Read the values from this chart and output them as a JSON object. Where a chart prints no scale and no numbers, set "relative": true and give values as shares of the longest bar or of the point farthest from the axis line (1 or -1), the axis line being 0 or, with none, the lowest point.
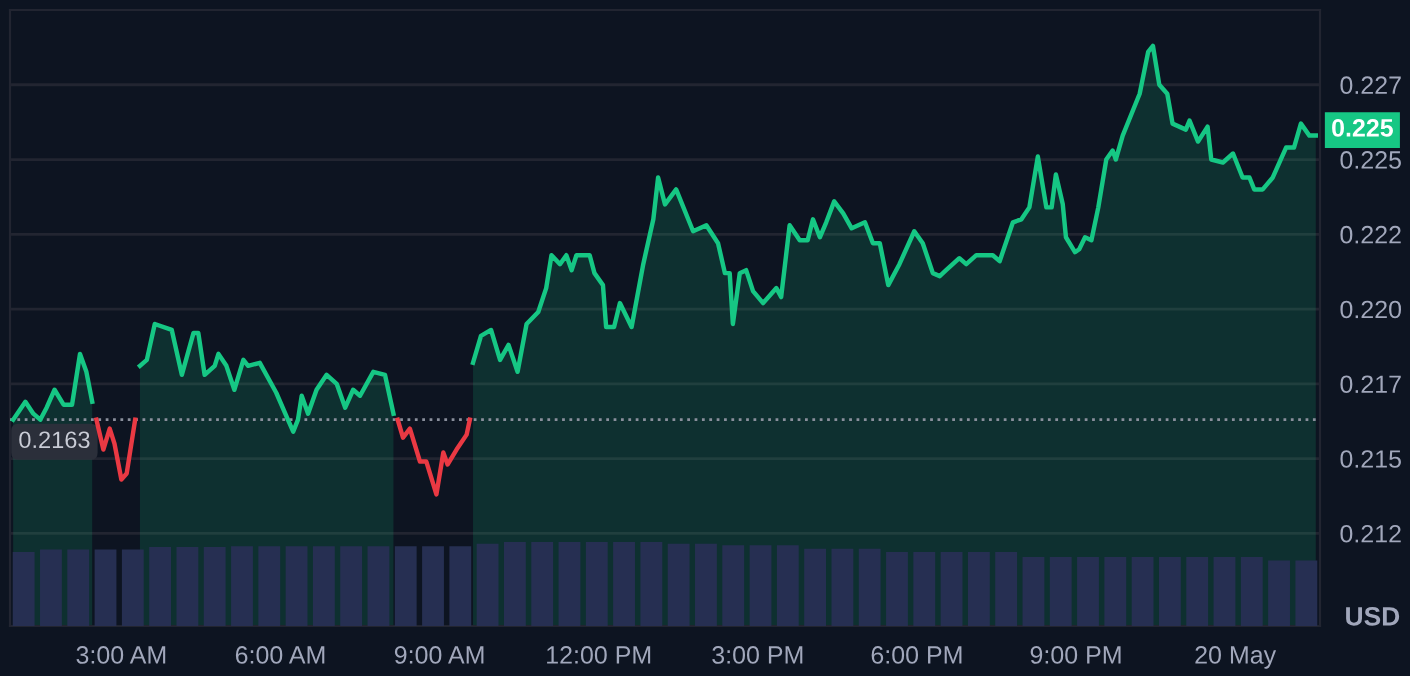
{
  "chart_data": [
    {
      "type": "area",
      "ylabel": "USD",
      "xlim": [
        0.9,
        25.6
      ],
      "xticks": [
        {
          "value": 3,
          "label": "3:00 AM"
        },
        {
          "value": 6,
          "label": "6:00 AM"
        },
        {
          "value": 9,
          "label": "9:00 AM"
        },
        {
          "value": 12,
          "label": "12:00 PM"
        },
        {
          "value": 15,
          "label": "3:00 PM"
        },
        {
          "value": 18,
          "label": "6:00 PM"
        },
        {
          "value": 21,
          "label": "9:00 PM"
        },
        {
          "value": 24,
          "label": "20 May"
        }
      ],
      "ylim": [
        0.2094,
        0.23
      ],
      "yticks": [
        {
          "value": 0.2125,
          "label": "0.212"
        },
        {
          "value": 0.215,
          "label": "0.215"
        },
        {
          "value": 0.2175,
          "label": "0.217"
        },
        {
          "value": 0.22,
          "label": "0.220"
        },
        {
          "value": 0.2225,
          "label": "0.222"
        },
        {
          "value": 0.225,
          "label": "0.225"
        },
        {
          "value": 0.2275,
          "label": "0.227"
        }
      ],
      "grid": "y",
      "ref_lines": [
        {
          "axis": "y",
          "value": 0.2163,
          "label": "0.2163",
          "color": "#8a8f9c",
          "line_style": "dotted"
        }
      ],
      "annotations": [
        "0.225"
      ],
      "series": [
        {
          "color": "#16c784",
          "x": [
            0.96,
            1.19,
            1.34,
            1.47,
            1.59,
            1.74,
            1.91,
            2.07,
            2.22,
            2.34,
            2.45,
            2.9,
            3.35,
            3.48,
            3.63,
            3.95,
            4.14,
            4.36,
            4.45,
            4.57,
            4.76,
            4.83,
            4.98,
            5.13,
            5.3,
            5.39,
            5.61,
            5.92,
            6.14,
            6.24,
            6.33,
            6.4,
            6.52,
            6.68,
            6.87,
            7.06,
            7.22,
            7.37,
            7.5,
            7.75,
            7.97,
            8.13,
            8.9,
            9.63,
            9.78,
            9.97,
            10.14,
            10.3,
            10.47,
            10.64,
            10.86,
            11.01,
            11.11,
            11.27,
            11.39,
            11.49,
            11.58,
            11.83,
            11.92,
            12.08,
            12.14,
            12.29,
            12.4,
            12.62,
            12.84,
            13.03,
            13.12,
            13.25,
            13.46,
            13.78,
            14.03,
            14.25,
            14.38,
            14.47,
            14.53,
            14.66,
            14.78,
            14.91,
            15.1,
            15.35,
            15.44,
            15.6,
            15.79,
            15.94,
            16.04,
            16.17,
            16.29,
            16.44,
            16.61,
            16.77,
            17.02,
            17.17,
            17.3,
            17.46,
            17.67,
            17.95,
            18.11,
            18.3,
            18.43,
            18.55,
            18.8,
            18.93,
            19.12,
            19.43,
            19.56,
            19.81,
            19.97,
            20.12,
            20.28,
            20.44,
            20.54,
            20.62,
            20.75,
            20.81,
            20.98,
            21.06,
            21.17,
            21.29,
            21.42,
            21.57,
            21.69,
            21.75,
            21.88,
            22.2,
            22.36,
            22.45,
            22.57,
            22.72,
            22.82,
            23.07,
            23.14,
            23.3,
            23.48,
            23.55,
            23.77,
            23.96,
            24.14,
            24.27,
            24.36,
            24.52,
            24.71,
            24.96,
            25.11,
            25.24,
            25.4,
            25.52
          ],
          "values": [
            0.2163,
            0.2169,
            0.2165,
            0.2163,
            0.2167,
            0.2173,
            0.2168,
            0.2168,
            0.2185,
            0.2179,
            0.2169,
            null,
            0.2181,
            0.2183,
            0.2195,
            0.2193,
            0.2178,
            0.2192,
            0.2192,
            0.2178,
            0.2181,
            0.2185,
            0.2181,
            0.2173,
            0.2183,
            0.2181,
            0.2182,
            0.2172,
            0.2163,
            0.2159,
            0.2163,
            0.2171,
            0.2165,
            0.2173,
            0.2178,
            0.2175,
            0.2167,
            0.2173,
            0.2171,
            0.2179,
            0.2178,
            0.2165,
            null,
            0.2182,
            0.2191,
            0.2193,
            0.2183,
            0.2188,
            0.2179,
            0.2195,
            0.2199,
            0.2207,
            0.2218,
            0.2215,
            0.2218,
            0.2213,
            0.2218,
            0.2218,
            0.2212,
            0.2208,
            0.2194,
            0.2194,
            0.2202,
            0.2194,
            0.2215,
            0.223,
            0.2244,
            0.2235,
            0.224,
            0.2226,
            0.2228,
            0.2222,
            0.2212,
            0.2212,
            0.2195,
            0.2212,
            0.2213,
            0.2206,
            0.2202,
            0.2207,
            0.2204,
            0.2228,
            0.2223,
            0.2223,
            0.223,
            0.2224,
            0.2229,
            0.2236,
            0.2232,
            0.2227,
            0.2229,
            0.2222,
            0.2222,
            0.2208,
            0.2215,
            0.2226,
            0.2222,
            0.2212,
            0.2211,
            0.2213,
            0.2217,
            0.2215,
            0.2218,
            0.2218,
            0.2216,
            0.2229,
            0.223,
            0.2234,
            0.2251,
            0.2234,
            0.2234,
            0.2245,
            0.2235,
            0.2224,
            0.2219,
            0.222,
            0.2224,
            0.2223,
            0.2234,
            0.225,
            0.2253,
            0.225,
            0.2258,
            0.2272,
            0.2286,
            0.2288,
            0.2275,
            0.2272,
            0.2262,
            0.226,
            0.2263,
            0.2256,
            0.2261,
            0.225,
            0.2249,
            0.2252,
            0.2244,
            0.2244,
            0.224,
            0.224,
            0.2244,
            0.2254,
            0.2254,
            0.2262,
            0.2258,
            0.2258
          ]
        },
        {
          "color": "#ea3943",
          "type": "line",
          "x": [
            2.53,
            2.66,
            2.78,
            2.87,
            3.0,
            3.1,
            3.26,
            5.0,
            8.21,
            8.31,
            8.44,
            8.63,
            8.75,
            8.94,
            9.07,
            9.15,
            9.32,
            9.51,
            9.57
          ],
          "values": [
            0.2163,
            0.2153,
            0.216,
            0.2155,
            0.2143,
            0.2145,
            0.2163,
            null,
            0.2163,
            0.2157,
            0.216,
            0.2149,
            0.2149,
            0.2138,
            0.2152,
            0.2148,
            0.2153,
            0.2158,
            0.2163
          ]
        }
      ]
    },
    {
      "type": "bar",
      "relative": true,
      "color": "#262f52",
      "categories": [
        null,
        null,
        null,
        null,
        null,
        null,
        null,
        null,
        null,
        null,
        null,
        null,
        null,
        null,
        null,
        null,
        null,
        null,
        null,
        null,
        null,
        null,
        null,
        null,
        null,
        null,
        null,
        null,
        null,
        null,
        null,
        null,
        null,
        null,
        null,
        null,
        null,
        null,
        null,
        null,
        null,
        null,
        null,
        null,
        null,
        null,
        null,
        null
      ],
      "values": [
        0.88,
        0.91,
        0.91,
        0.91,
        0.91,
        0.94,
        0.94,
        0.94,
        0.95,
        0.95,
        0.95,
        0.95,
        0.95,
        0.95,
        0.95,
        0.95,
        0.95,
        0.98,
        1,
        1,
        1,
        1,
        1,
        1,
        0.98,
        0.98,
        0.96,
        0.96,
        0.96,
        0.92,
        0.92,
        0.92,
        0.88,
        0.88,
        0.88,
        0.88,
        0.88,
        0.82,
        0.82,
        0.82,
        0.82,
        0.82,
        0.82,
        0.82,
        0.82,
        0.82,
        0.78,
        0.78
      ]
    }
  ]
}
